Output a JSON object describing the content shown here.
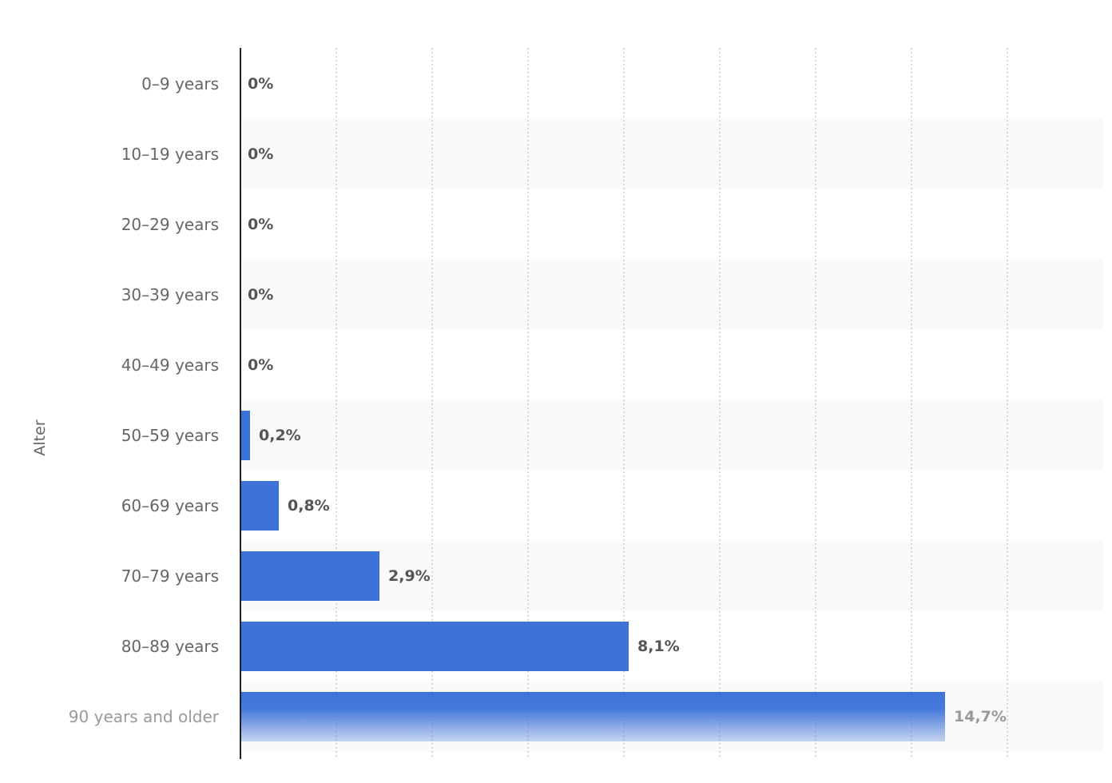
{
  "chart_data": {
    "type": "bar",
    "orientation": "horizontal",
    "ylabel": "Alter",
    "categories": [
      "0–9 years",
      "10–19 years",
      "20–29 years",
      "30–39 years",
      "40–49 years",
      "50–59 years",
      "60–69 years",
      "70–79 years",
      "80–89 years",
      "90 years and older"
    ],
    "values": [
      0,
      0,
      0,
      0,
      0,
      0.2,
      0.8,
      2.9,
      8.1,
      14.7
    ],
    "value_labels": [
      "0%",
      "0%",
      "0%",
      "0%",
      "0%",
      "0,2%",
      "0,8%",
      "2,9%",
      "8,1%",
      "14,7%"
    ],
    "xlim": [
      0,
      18
    ],
    "grid": true,
    "bar_color": "#3d73d9",
    "band_color": "#f9f9f9",
    "grid_color": "#cccccc"
  }
}
